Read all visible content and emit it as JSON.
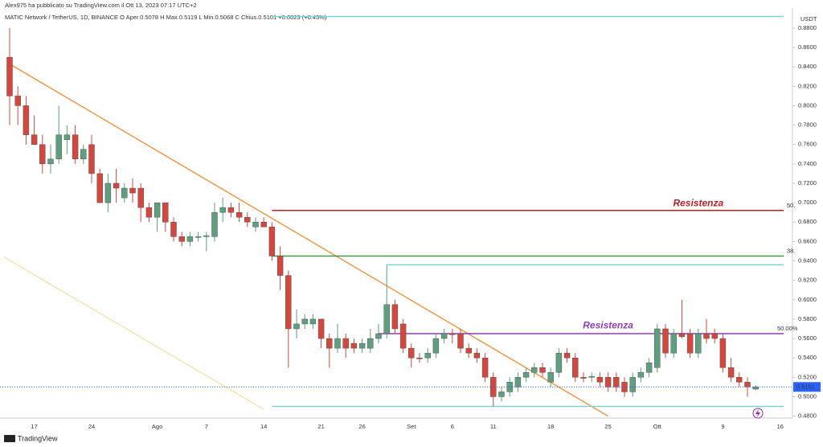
{
  "header": "Alex975 ha pubblicato su TradingView.com il Ott 13, 2023 07:17 UTC+2",
  "brand": "TradingView",
  "chart_data": {
    "type": "candlestick",
    "title": "MATIC Network / TetherUS, 1D, BINANCE  O Aper.0.5078  H Max.0.5119  L Min.0.5068  C Chius.0.5101  +0.0023 (+0.45%)",
    "y_unit": "USDT",
    "up_color": "#5f9e7f",
    "down_color": "#d2483f",
    "categories": [
      null,
      null,
      null,
      "17",
      null,
      null,
      null,
      null,
      null,
      null,
      "24",
      null,
      null,
      null,
      null,
      null,
      null,
      null,
      "Ago",
      null,
      null,
      null,
      null,
      null,
      "7",
      null,
      null,
      null,
      null,
      null,
      null,
      "14",
      null,
      null,
      null,
      null,
      null,
      null,
      "21",
      null,
      null,
      null,
      null,
      "26",
      null,
      null,
      null,
      null,
      null,
      "Set",
      null,
      null,
      null,
      null,
      "6",
      null,
      null,
      null,
      null,
      "11",
      null,
      null,
      null,
      null,
      null,
      null,
      "18",
      null,
      null,
      null,
      null,
      null,
      null,
      "25",
      null,
      null,
      null,
      null,
      null,
      "Ott",
      null,
      null,
      null,
      null,
      null,
      null,
      null,
      "9",
      null,
      null,
      null,
      null,
      null,
      null,
      "16"
    ],
    "open": [
      0.85,
      0.81,
      0.8,
      0.77,
      0.76,
      0.74,
      0.745,
      0.765,
      0.77,
      0.745,
      0.76,
      0.73,
      0.7,
      0.72,
      0.705,
      0.715,
      0.715,
      0.695,
      0.685,
      0.7,
      0.68,
      0.665,
      0.66,
      0.665,
      0.665,
      0.665,
      0.69,
      0.695,
      0.69,
      0.685,
      0.675,
      0.68,
      0.675,
      0.645,
      0.625,
      0.57,
      0.575,
      0.575,
      0.58,
      0.56,
      0.55,
      0.56,
      0.555,
      0.55,
      0.55,
      0.56,
      0.565,
      0.595,
      0.575,
      0.55,
      0.54,
      0.54,
      0.545,
      0.56,
      0.565,
      0.565,
      0.55,
      0.545,
      0.54,
      0.52,
      0.5,
      0.505,
      0.51,
      0.52,
      0.525,
      0.53,
      0.515,
      0.525,
      0.545,
      0.54,
      0.52,
      0.52,
      0.52,
      0.52,
      0.52,
      0.515,
      0.505,
      0.52,
      0.525,
      0.53,
      0.57,
      0.545,
      0.565,
      0.565,
      0.545,
      0.565,
      0.565,
      0.56,
      0.53,
      0.52,
      0.515,
      0.5078,
      null,
      null,
      null
    ],
    "high": [
      0.88,
      0.82,
      0.81,
      0.79,
      0.77,
      0.76,
      0.8,
      0.78,
      0.78,
      0.76,
      0.77,
      0.735,
      0.73,
      0.735,
      0.72,
      0.725,
      0.72,
      0.7,
      0.7,
      0.7,
      0.685,
      0.67,
      0.67,
      0.67,
      0.67,
      0.7,
      0.705,
      0.7,
      0.7,
      0.69,
      0.685,
      0.685,
      0.68,
      0.655,
      0.63,
      0.59,
      0.585,
      0.585,
      0.58,
      0.565,
      0.575,
      0.565,
      0.56,
      0.56,
      0.57,
      0.575,
      0.636,
      0.6,
      0.58,
      0.555,
      0.545,
      0.55,
      0.565,
      0.57,
      0.57,
      0.57,
      0.555,
      0.55,
      0.545,
      0.525,
      0.51,
      0.52,
      0.525,
      0.53,
      0.535,
      0.535,
      0.53,
      0.55,
      0.55,
      0.545,
      0.525,
      0.525,
      0.525,
      0.525,
      0.525,
      0.52,
      0.525,
      0.53,
      0.54,
      0.575,
      0.575,
      0.57,
      0.6,
      0.57,
      0.57,
      0.58,
      0.57,
      0.565,
      0.54,
      0.525,
      0.52,
      0.5119,
      null,
      null,
      null
    ],
    "low": [
      0.78,
      0.78,
      0.76,
      0.76,
      0.73,
      0.73,
      0.74,
      0.75,
      0.74,
      0.74,
      0.72,
      0.7,
      0.69,
      0.7,
      0.7,
      0.7,
      0.68,
      0.68,
      0.67,
      0.67,
      0.66,
      0.655,
      0.655,
      0.66,
      0.65,
      0.66,
      0.68,
      0.685,
      0.68,
      0.675,
      0.67,
      0.675,
      0.64,
      0.61,
      0.53,
      0.56,
      0.57,
      0.57,
      0.55,
      0.53,
      0.545,
      0.54,
      0.545,
      0.545,
      0.545,
      0.555,
      0.56,
      0.565,
      0.545,
      0.53,
      0.535,
      0.535,
      0.54,
      0.555,
      0.555,
      0.545,
      0.54,
      0.535,
      0.515,
      0.49,
      0.495,
      0.5,
      0.505,
      0.515,
      0.52,
      0.52,
      0.51,
      0.52,
      0.535,
      0.515,
      0.515,
      0.515,
      0.51,
      0.505,
      0.505,
      0.5,
      0.5,
      0.515,
      0.52,
      0.525,
      0.54,
      0.54,
      0.56,
      0.54,
      0.54,
      0.555,
      0.555,
      0.525,
      0.515,
      0.51,
      0.5,
      0.5068,
      null,
      null,
      null
    ],
    "close": [
      0.81,
      0.8,
      0.77,
      0.76,
      0.74,
      0.745,
      0.77,
      0.77,
      0.745,
      0.755,
      0.73,
      0.7,
      0.72,
      0.715,
      0.715,
      0.71,
      0.695,
      0.685,
      0.7,
      0.68,
      0.665,
      0.66,
      0.665,
      0.665,
      0.666,
      0.69,
      0.695,
      0.69,
      0.685,
      0.68,
      0.68,
      0.675,
      0.645,
      0.625,
      0.57,
      0.575,
      0.58,
      0.58,
      0.56,
      0.55,
      0.56,
      0.55,
      0.55,
      0.555,
      0.56,
      0.565,
      0.595,
      0.57,
      0.55,
      0.54,
      0.539,
      0.545,
      0.56,
      0.565,
      0.564,
      0.55,
      0.545,
      0.54,
      0.52,
      0.5,
      0.505,
      0.515,
      0.52,
      0.525,
      0.53,
      0.525,
      0.525,
      0.545,
      0.54,
      0.52,
      0.519,
      0.521,
      0.515,
      0.51,
      0.51,
      0.505,
      0.52,
      0.525,
      0.535,
      0.57,
      0.545,
      0.565,
      0.562,
      0.545,
      0.565,
      0.56,
      0.56,
      0.53,
      0.52,
      0.515,
      0.51,
      0.5101,
      null,
      null,
      null
    ],
    "ylim": [
      0.478,
      0.899
    ],
    "yticks": [
      {
        "value": 0.48,
        "label": "0.4800"
      },
      {
        "value": 0.5,
        "label": "0.5000"
      },
      {
        "value": 0.52,
        "label": "0.5200"
      },
      {
        "value": 0.54,
        "label": "0.5400"
      },
      {
        "value": 0.56,
        "label": "0.5600"
      },
      {
        "value": 0.58,
        "label": "0.5800"
      },
      {
        "value": 0.6,
        "label": "0.6000"
      },
      {
        "value": 0.62,
        "label": "0.6200"
      },
      {
        "value": 0.64,
        "label": "0.6400"
      },
      {
        "value": 0.66,
        "label": "0.6600"
      },
      {
        "value": 0.68,
        "label": "0.6800"
      },
      {
        "value": 0.7,
        "label": "0.7000"
      },
      {
        "value": 0.72,
        "label": "0.7200"
      },
      {
        "value": 0.74,
        "label": "0.7400"
      },
      {
        "value": 0.76,
        "label": "0.7600"
      },
      {
        "value": 0.78,
        "label": "0.7800"
      },
      {
        "value": 0.8,
        "label": "0.8000"
      },
      {
        "value": 0.82,
        "label": "0.8200"
      },
      {
        "value": 0.84,
        "label": "0.8400"
      },
      {
        "value": 0.86,
        "label": "0.8600"
      },
      {
        "value": 0.88,
        "label": "0.8800"
      }
    ],
    "levels": [
      {
        "value": 0.892,
        "from": 32,
        "color": "#7fd3d6"
      },
      {
        "value": 0.692,
        "from": 32,
        "color": "#b2242a",
        "label": "50."
      },
      {
        "value": 0.645,
        "from": 32,
        "color": "#3f9a4a",
        "label": "38."
      },
      {
        "value": 0.636,
        "from": 46,
        "color": "#7fd3d6"
      },
      {
        "value": 0.565,
        "from": 45,
        "color": "#8e3fb0",
        "label": "50.00%"
      },
      {
        "value": 0.49,
        "from": 32,
        "color": "#7fd3d6"
      }
    ],
    "annotations": [
      {
        "text": "Resistenza",
        "x": 84,
        "y": 0.699,
        "color": "#b2242a"
      },
      {
        "text": "Resistenza",
        "x": 73,
        "y": 0.573,
        "color": "#8e3fb0"
      }
    ],
    "trendlines": [
      {
        "x": [
          0,
          73
        ],
        "y": [
          0.843,
          0.48
        ],
        "color": "#f0994a"
      },
      {
        "x": [
          -0.7,
          31
        ],
        "y": [
          0.644,
          0.487
        ],
        "color": "#f5e6b0"
      }
    ]
  }
}
